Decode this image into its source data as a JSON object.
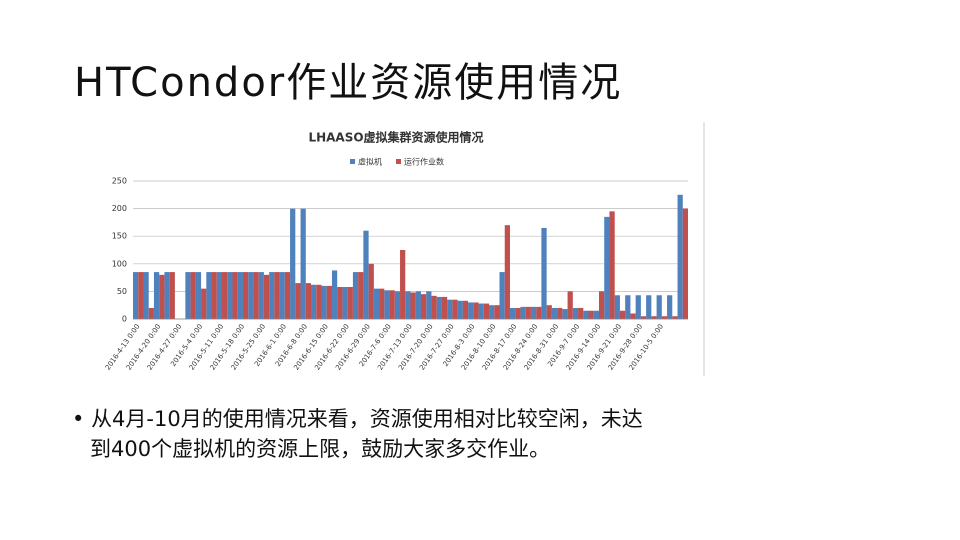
{
  "slide_title": "HTCondor作业资源使用情况",
  "bullet": {
    "lines": [
      "从4月-10月的使用情况来看，资源使用相对比较空闲，未达",
      "到400个虚拟机的资源上限，鼓励大家多交作业。"
    ]
  },
  "chart_data": {
    "type": "bar",
    "title": "LHAASO虚拟集群资源使用情况",
    "categories": [
      "2016-4-13 0:00",
      null,
      "2016-4-20 0:00",
      null,
      "2016-4-27 0:00",
      null,
      "2016-5-4 0:00",
      null,
      "2016-5-11 0:00",
      null,
      "2016-5-18 0:00",
      null,
      "2016-5-25 0:00",
      null,
      "2016-6-1 0:00",
      null,
      "2016-6-8 0:00",
      null,
      "2016-6-15 0:00",
      null,
      "2016-6-22 0:00",
      null,
      "2016-6-29 0:00",
      null,
      "2016-7-6 0:00",
      null,
      "2016-7-13 0:00",
      null,
      "2016-7-20 0:00",
      null,
      "2016-7-27 0:00",
      null,
      "2016-8-3 0:00",
      null,
      "2016-8-10 0:00",
      null,
      "2016-8-17 0:00",
      null,
      "2016-8-24 0:00",
      null,
      "2016-8-31 0:00",
      null,
      "2016-9-7 0:00",
      null,
      "2016-9-14 0:00",
      null,
      "2016-9-21 0:00",
      null,
      "2016-9-28 0:00",
      null,
      "2016-10-5 0:00",
      null,
      null
    ],
    "series": [
      {
        "name": "虚拟机",
        "color": "#4f81bd",
        "values": [
          85,
          85,
          85,
          85,
          0,
          85,
          85,
          85,
          85,
          85,
          85,
          85,
          85,
          85,
          85,
          200,
          200,
          62,
          60,
          88,
          58,
          85,
          160,
          55,
          52,
          50,
          50,
          50,
          50,
          40,
          35,
          33,
          30,
          28,
          25,
          85,
          20,
          22,
          22,
          165,
          20,
          18,
          20,
          15,
          15,
          185,
          43,
          43,
          43,
          43,
          43,
          43,
          225
        ]
      },
      {
        "name": "运行作业数",
        "color": "#c0504d",
        "values": [
          85,
          20,
          80,
          85,
          0,
          85,
          55,
          85,
          85,
          85,
          85,
          85,
          80,
          85,
          85,
          65,
          65,
          62,
          60,
          58,
          58,
          85,
          100,
          55,
          52,
          125,
          48,
          45,
          42,
          40,
          35,
          33,
          30,
          28,
          25,
          170,
          20,
          22,
          22,
          25,
          20,
          50,
          20,
          15,
          50,
          195,
          15,
          10,
          5,
          5,
          5,
          5,
          200
        ]
      }
    ],
    "ylim": [
      0,
      250
    ],
    "yticks": [
      0,
      50,
      100,
      150,
      200,
      250
    ],
    "grid": true,
    "legend": "top"
  }
}
